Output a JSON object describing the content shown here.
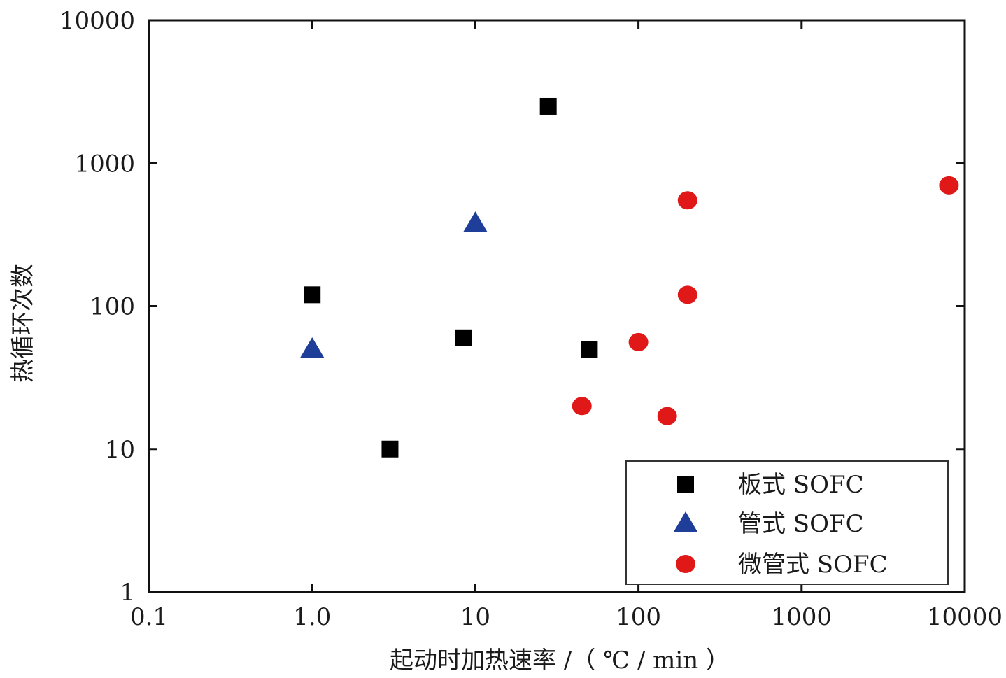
{
  "chart_data": {
    "type": "scatter",
    "title": "",
    "xlabel": "起动时加热速率 /（ ℃ / min ）",
    "ylabel": "热循环次数",
    "xscale": "log",
    "yscale": "log",
    "xlim": [
      0.1,
      10000
    ],
    "ylim": [
      1,
      10000
    ],
    "x_ticks": [
      0.1,
      1,
      10,
      100,
      1000,
      10000
    ],
    "x_tick_labels": [
      "0.1",
      "1.0",
      "10",
      "100",
      "1000",
      "10000"
    ],
    "y_ticks": [
      1,
      10,
      100,
      1000,
      10000
    ],
    "y_tick_labels": [
      "1",
      "10",
      "100",
      "1000",
      "10000"
    ],
    "grid": false,
    "legend_position": "bottom-right",
    "series": [
      {
        "name": "板式 SOFC",
        "marker": "square",
        "color": "#000000",
        "points": [
          [
            1,
            120
          ],
          [
            3,
            10
          ],
          [
            8.5,
            60
          ],
          [
            28,
            2500
          ],
          [
            50,
            50
          ]
        ]
      },
      {
        "name": "管式 SOFC",
        "marker": "triangle",
        "color": "#1f3e9a",
        "points": [
          [
            1,
            50
          ],
          [
            10,
            380
          ]
        ]
      },
      {
        "name": "微管式 SOFC",
        "marker": "circle",
        "color": "#e01818",
        "points": [
          [
            45,
            20
          ],
          [
            100,
            56
          ],
          [
            150,
            17
          ],
          [
            200,
            120
          ],
          [
            200,
            550
          ],
          [
            8000,
            700
          ]
        ]
      }
    ]
  }
}
